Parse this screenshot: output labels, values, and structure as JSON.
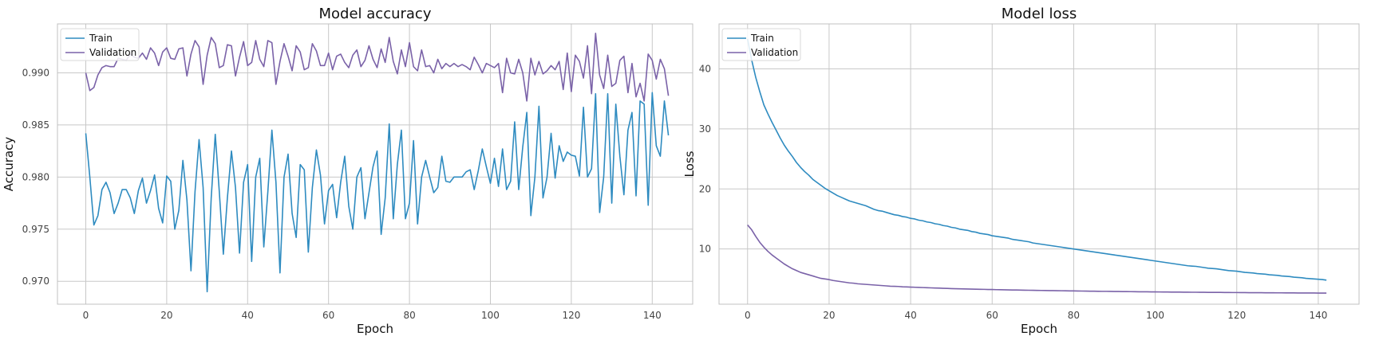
{
  "chart_data": [
    {
      "type": "line",
      "title": "Model accuracy",
      "xlabel": "Epoch",
      "ylabel": "Accuracy",
      "xlim": [
        -7,
        150
      ],
      "ylim": [
        0.9678,
        0.9947
      ],
      "xticks": [
        0,
        20,
        40,
        60,
        80,
        100,
        120,
        140
      ],
      "yticks": [
        0.97,
        0.975,
        0.98,
        0.985,
        0.99
      ],
      "ytick_labels": [
        "0.970",
        "0.975",
        "0.980",
        "0.985",
        "0.990"
      ],
      "grid": true,
      "legend": "top-left",
      "series": [
        {
          "name": "Train",
          "color": "#2e8bc0",
          "values": [
            0.9842,
            0.98,
            0.9754,
            0.9763,
            0.9788,
            0.9795,
            0.9785,
            0.9765,
            0.9775,
            0.9788,
            0.9788,
            0.978,
            0.9765,
            0.9787,
            0.9799,
            0.9775,
            0.9787,
            0.9802,
            0.977,
            0.9756,
            0.9801,
            0.9796,
            0.975,
            0.9768,
            0.9816,
            0.9778,
            0.971,
            0.9786,
            0.9836,
            0.979,
            0.969,
            0.978,
            0.9841,
            0.9786,
            0.9726,
            0.978,
            0.9825,
            0.979,
            0.9727,
            0.9795,
            0.9812,
            0.9719,
            0.98,
            0.9818,
            0.9733,
            0.9786,
            0.9845,
            0.9795,
            0.9708,
            0.98,
            0.9822,
            0.9765,
            0.9742,
            0.9812,
            0.9807,
            0.9728,
            0.979,
            0.9826,
            0.9802,
            0.9755,
            0.9787,
            0.9793,
            0.9761,
            0.9795,
            0.982,
            0.9772,
            0.975,
            0.98,
            0.9809,
            0.976,
            0.9785,
            0.981,
            0.9825,
            0.9745,
            0.978,
            0.9851,
            0.976,
            0.9812,
            0.9845,
            0.976,
            0.9775,
            0.9835,
            0.9755,
            0.98,
            0.9816,
            0.98,
            0.9785,
            0.979,
            0.982,
            0.9796,
            0.9795,
            0.98,
            0.98,
            0.98,
            0.9805,
            0.9807,
            0.9788,
            0.9806,
            0.9827,
            0.981,
            0.9794,
            0.9818,
            0.9791,
            0.9827,
            0.9788,
            0.9796,
            0.9853,
            0.9788,
            0.9829,
            0.9862,
            0.9763,
            0.98,
            0.9868,
            0.978,
            0.98,
            0.9842,
            0.9799,
            0.983,
            0.9815,
            0.9824,
            0.9821,
            0.982,
            0.9801,
            0.9867,
            0.98,
            0.9808,
            0.988,
            0.9766,
            0.98,
            0.988,
            0.9775,
            0.987,
            0.982,
            0.9783,
            0.9845,
            0.9862,
            0.9782,
            0.9873,
            0.987,
            0.9773,
            0.9881,
            0.983,
            0.982,
            0.9873,
            0.984
          ]
        },
        {
          "name": "Validation",
          "color": "#7a62a8",
          "values": [
            0.99,
            0.9883,
            0.9886,
            0.9898,
            0.9905,
            0.9907,
            0.9906,
            0.9906,
            0.9914,
            0.9913,
            0.9912,
            0.9918,
            0.9915,
            0.9914,
            0.9919,
            0.9913,
            0.9924,
            0.9919,
            0.9907,
            0.992,
            0.9924,
            0.9914,
            0.9913,
            0.9923,
            0.9924,
            0.9897,
            0.9918,
            0.9931,
            0.9925,
            0.9889,
            0.9917,
            0.9934,
            0.9928,
            0.9905,
            0.9907,
            0.9927,
            0.9926,
            0.9897,
            0.9915,
            0.993,
            0.9907,
            0.991,
            0.9931,
            0.9913,
            0.9906,
            0.9931,
            0.9929,
            0.9889,
            0.9911,
            0.9928,
            0.9916,
            0.9902,
            0.9926,
            0.992,
            0.9903,
            0.9905,
            0.9928,
            0.9921,
            0.9907,
            0.9907,
            0.9919,
            0.9903,
            0.9916,
            0.9918,
            0.991,
            0.9905,
            0.9917,
            0.9922,
            0.9906,
            0.9912,
            0.9926,
            0.9913,
            0.9905,
            0.9923,
            0.991,
            0.9934,
            0.9911,
            0.9899,
            0.9922,
            0.9906,
            0.9929,
            0.9906,
            0.9902,
            0.9922,
            0.9906,
            0.9907,
            0.99,
            0.9913,
            0.9904,
            0.9909,
            0.9906,
            0.9909,
            0.9906,
            0.9908,
            0.9906,
            0.9903,
            0.9915,
            0.9908,
            0.99,
            0.9909,
            0.9907,
            0.9905,
            0.9909,
            0.9881,
            0.9914,
            0.99,
            0.9899,
            0.9913,
            0.99,
            0.9873,
            0.9914,
            0.9898,
            0.9911,
            0.9899,
            0.9902,
            0.9907,
            0.9903,
            0.9911,
            0.9884,
            0.9919,
            0.9882,
            0.9917,
            0.9911,
            0.9895,
            0.9926,
            0.988,
            0.9938,
            0.9898,
            0.9885,
            0.9917,
            0.9887,
            0.989,
            0.9912,
            0.9916,
            0.9881,
            0.9909,
            0.9877,
            0.989,
            0.9873,
            0.9918,
            0.9912,
            0.9894,
            0.9913,
            0.9904,
            0.9878
          ]
        }
      ]
    },
    {
      "type": "line",
      "title": "Model loss",
      "xlabel": "Epoch",
      "ylabel": "Loss",
      "xlim": [
        -7,
        150
      ],
      "ylim": [
        0.8,
        47.5
      ],
      "xticks": [
        0,
        20,
        40,
        60,
        80,
        100,
        120,
        140
      ],
      "yticks": [
        10,
        20,
        30,
        40
      ],
      "ytick_labels": [
        "10",
        "20",
        "30",
        "40"
      ],
      "grid": true,
      "legend": "top-left",
      "series": [
        {
          "name": "Train",
          "color": "#2e8bc0",
          "values": [
            45.0,
            41.5,
            38.6,
            36.2,
            34.0,
            32.5,
            31.1,
            29.8,
            28.5,
            27.3,
            26.3,
            25.4,
            24.4,
            23.6,
            22.9,
            22.3,
            21.6,
            21.1,
            20.6,
            20.1,
            19.7,
            19.3,
            18.9,
            18.6,
            18.3,
            18.0,
            17.8,
            17.6,
            17.4,
            17.2,
            16.9,
            16.6,
            16.4,
            16.3,
            16.1,
            15.9,
            15.7,
            15.6,
            15.4,
            15.3,
            15.1,
            15.0,
            14.8,
            14.7,
            14.5,
            14.4,
            14.2,
            14.1,
            13.9,
            13.8,
            13.6,
            13.5,
            13.3,
            13.2,
            13.1,
            12.9,
            12.8,
            12.6,
            12.5,
            12.4,
            12.2,
            12.1,
            12.0,
            11.9,
            11.8,
            11.6,
            11.5,
            11.4,
            11.3,
            11.2,
            11.0,
            10.9,
            10.8,
            10.7,
            10.6,
            10.5,
            10.4,
            10.3,
            10.2,
            10.1,
            10.0,
            9.9,
            9.8,
            9.7,
            9.6,
            9.5,
            9.4,
            9.3,
            9.2,
            9.1,
            9.0,
            8.9,
            8.8,
            8.7,
            8.6,
            8.5,
            8.4,
            8.3,
            8.2,
            8.1,
            8.0,
            7.9,
            7.8,
            7.7,
            7.6,
            7.5,
            7.4,
            7.3,
            7.2,
            7.15,
            7.1,
            7.0,
            6.9,
            6.8,
            6.75,
            6.7,
            6.6,
            6.5,
            6.4,
            6.35,
            6.3,
            6.2,
            6.1,
            6.05,
            6.0,
            5.9,
            5.85,
            5.8,
            5.7,
            5.65,
            5.6,
            5.5,
            5.45,
            5.4,
            5.3,
            5.25,
            5.2,
            5.1,
            5.05,
            5.0,
            4.95,
            4.9,
            4.8
          ]
        },
        {
          "name": "Validation",
          "color": "#7a62a8",
          "values": [
            14.0,
            13.2,
            12.1,
            11.1,
            10.3,
            9.6,
            9.0,
            8.5,
            8.0,
            7.5,
            7.1,
            6.7,
            6.4,
            6.1,
            5.9,
            5.7,
            5.5,
            5.3,
            5.1,
            5.0,
            4.9,
            4.75,
            4.65,
            4.55,
            4.45,
            4.35,
            4.3,
            4.2,
            4.15,
            4.1,
            4.05,
            4.0,
            3.95,
            3.9,
            3.85,
            3.8,
            3.78,
            3.75,
            3.7,
            3.68,
            3.65,
            3.62,
            3.6,
            3.57,
            3.55,
            3.52,
            3.5,
            3.48,
            3.45,
            3.43,
            3.4,
            3.38,
            3.36,
            3.35,
            3.33,
            3.31,
            3.3,
            3.28,
            3.27,
            3.25,
            3.24,
            3.22,
            3.21,
            3.2,
            3.18,
            3.17,
            3.16,
            3.15,
            3.13,
            3.12,
            3.11,
            3.1,
            3.09,
            3.08,
            3.07,
            3.06,
            3.05,
            3.04,
            3.03,
            3.02,
            3.01,
            3.0,
            2.99,
            2.98,
            2.97,
            2.96,
            2.95,
            2.94,
            2.94,
            2.93,
            2.92,
            2.91,
            2.9,
            2.9,
            2.89,
            2.88,
            2.87,
            2.87,
            2.86,
            2.85,
            2.85,
            2.84,
            2.83,
            2.83,
            2.82,
            2.82,
            2.81,
            2.8,
            2.8,
            2.79,
            2.79,
            2.78,
            2.78,
            2.77,
            2.77,
            2.76,
            2.76,
            2.75,
            2.75,
            2.74,
            2.74,
            2.73,
            2.73,
            2.72,
            2.72,
            2.71,
            2.71,
            2.7,
            2.7,
            2.7,
            2.69,
            2.69,
            2.68,
            2.68,
            2.68,
            2.67,
            2.67,
            2.66,
            2.66,
            2.66,
            2.65,
            2.65,
            2.65
          ]
        }
      ]
    }
  ]
}
